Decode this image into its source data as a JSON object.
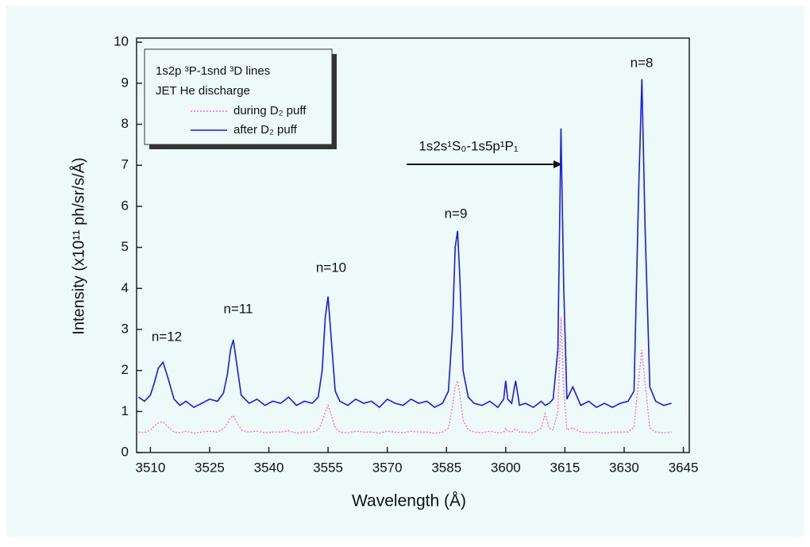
{
  "chart_data": {
    "type": "line",
    "x_label": "Wavelength (Å)",
    "y_label": "Intensity (x10¹¹ ph/sr/s/Å)",
    "legend_title": [
      "1s2p ³P-1snd ³D lines",
      "JET He discharge"
    ],
    "annotations": [
      "n=12",
      "n=11",
      "n=10",
      "n=9",
      "1s2s¹S₀-1s5p¹P₁",
      "n=8"
    ],
    "x": [
      3507,
      3508.5,
      3510,
      3511,
      3512,
      3513.2,
      3514.5,
      3516,
      3517.5,
      3519,
      3521,
      3523,
      3525,
      3527,
      3528.5,
      3529.5,
      3530.3,
      3531,
      3531.8,
      3533,
      3535,
      3537,
      3539,
      3541,
      3543,
      3545,
      3547,
      3549,
      3551,
      3552.5,
      3553.5,
      3554.3,
      3555,
      3555.7,
      3556.8,
      3558,
      3560,
      3562,
      3564,
      3566,
      3568,
      3570,
      3572,
      3574,
      3576,
      3578,
      3580,
      3582,
      3584,
      3585.5,
      3586.5,
      3587.2,
      3587.8,
      3588.4,
      3589.2,
      3590.5,
      3592,
      3594,
      3596,
      3598,
      3599.5,
      3600,
      3600.5,
      3601.5,
      3602.5,
      3603.5,
      3605,
      3607,
      3609,
      3610,
      3611,
      3612,
      3613.2,
      3614,
      3614.7,
      3615.5,
      3617,
      3619,
      3621,
      3623,
      3625,
      3627,
      3629,
      3631,
      3632.5,
      3633.7,
      3634.5,
      3635.3,
      3636.5,
      3638,
      3640,
      3642
    ],
    "series": [
      {
        "name": "during D₂ puff",
        "color": "#ff66cc",
        "dashed": true,
        "values": [
          0.5,
          0.48,
          0.55,
          0.65,
          0.72,
          0.75,
          0.62,
          0.5,
          0.48,
          0.52,
          0.47,
          0.5,
          0.52,
          0.5,
          0.58,
          0.7,
          0.85,
          0.9,
          0.75,
          0.55,
          0.5,
          0.52,
          0.48,
          0.5,
          0.5,
          0.53,
          0.47,
          0.5,
          0.5,
          0.55,
          0.75,
          1.0,
          1.15,
          0.95,
          0.6,
          0.5,
          0.48,
          0.52,
          0.5,
          0.5,
          0.47,
          0.52,
          0.5,
          0.48,
          0.52,
          0.5,
          0.5,
          0.47,
          0.5,
          0.6,
          1.1,
          1.6,
          1.75,
          1.4,
          0.8,
          0.55,
          0.5,
          0.48,
          0.52,
          0.48,
          0.5,
          0.6,
          0.52,
          0.5,
          0.58,
          0.5,
          0.5,
          0.48,
          0.6,
          0.95,
          0.6,
          0.55,
          1.0,
          3.3,
          1.5,
          0.55,
          0.6,
          0.5,
          0.48,
          0.5,
          0.47,
          0.5,
          0.5,
          0.5,
          0.62,
          1.8,
          2.5,
          1.7,
          0.6,
          0.5,
          0.48,
          0.5
        ]
      },
      {
        "name": "after D₂ puff",
        "color": "#1a1aee",
        "dashed": false,
        "values": [
          1.35,
          1.25,
          1.4,
          1.7,
          2.05,
          2.2,
          1.8,
          1.3,
          1.15,
          1.25,
          1.1,
          1.2,
          1.3,
          1.25,
          1.45,
          1.9,
          2.5,
          2.75,
          2.2,
          1.4,
          1.2,
          1.3,
          1.15,
          1.25,
          1.2,
          1.35,
          1.15,
          1.25,
          1.2,
          1.35,
          2.0,
          3.3,
          3.8,
          2.9,
          1.5,
          1.25,
          1.15,
          1.3,
          1.2,
          1.25,
          1.1,
          1.3,
          1.2,
          1.15,
          1.3,
          1.2,
          1.25,
          1.1,
          1.2,
          1.5,
          3.0,
          5.0,
          5.4,
          4.2,
          2.0,
          1.35,
          1.2,
          1.15,
          1.25,
          1.1,
          1.3,
          1.75,
          1.3,
          1.2,
          1.75,
          1.15,
          1.2,
          1.1,
          1.25,
          1.15,
          1.2,
          1.3,
          2.5,
          7.9,
          4.0,
          1.3,
          1.6,
          1.15,
          1.25,
          1.1,
          1.2,
          1.1,
          1.2,
          1.25,
          1.5,
          6.5,
          9.1,
          5.5,
          1.6,
          1.25,
          1.15,
          1.2
        ]
      }
    ],
    "xlim": [
      3506.5,
      3646.5
    ],
    "xticks": [
      3510,
      3525,
      3540,
      3555,
      3570,
      3585,
      3600,
      3615,
      3630,
      3645
    ],
    "ylim": [
      0,
      10.1
    ],
    "yticks": [
      0,
      1,
      2,
      3,
      4,
      5,
      6,
      7,
      8,
      9,
      10
    ]
  }
}
